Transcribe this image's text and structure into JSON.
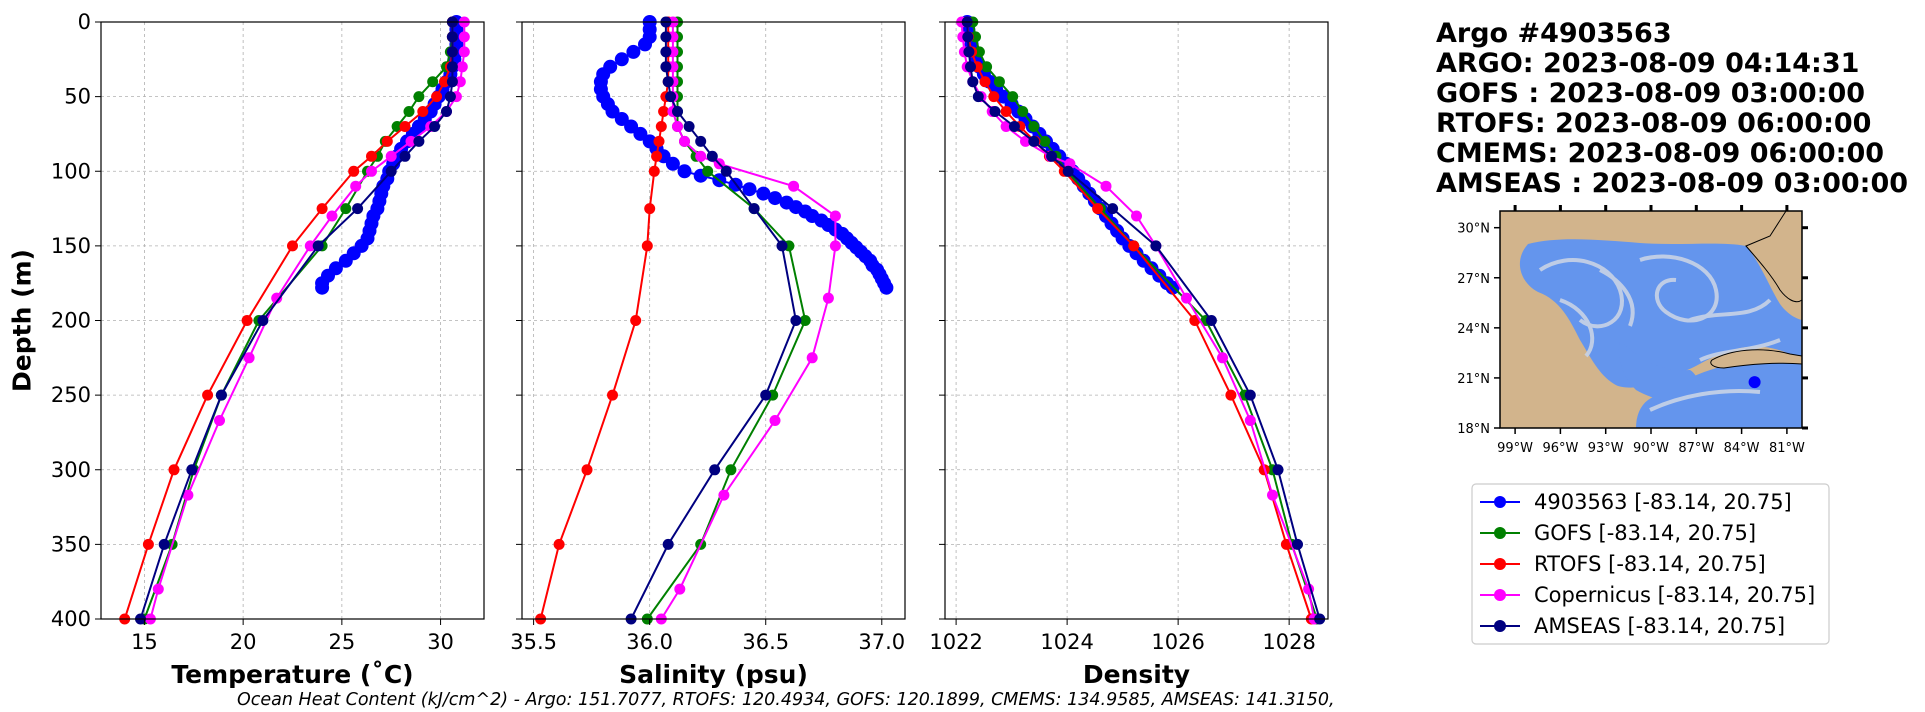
{
  "colors": {
    "argo": "#0000ff",
    "gofs": "#008000",
    "rtofs": "#ff0000",
    "copernicus": "#ff00ff",
    "amseas": "#000080",
    "land": "#d2b48c",
    "ocean": "#6495ed",
    "grid": "#b0b0b0"
  },
  "info": {
    "lines": [
      "Argo #4903563",
      "ARGO:  2023-08-09 04:14:31",
      "GOFS : 2023-08-09 03:00:00",
      "RTOFS: 2023-08-09 06:00:00",
      "CMEMS: 2023-08-09 06:00:00",
      "AMSEAS : 2023-08-09 03:00:00"
    ]
  },
  "footer": "Ocean Heat Content (kJ/cm^2) - Argo: 151.7077,  RTOFS: 120.4934,  GOFS: 120.1899,  CMEMS: 134.9585,  AMSEAS: 141.3150,",
  "legend": [
    {
      "label": "4903563 [-83.14, 20.75]",
      "color": "#0000ff"
    },
    {
      "label": "GOFS [-83.14, 20.75]",
      "color": "#008000"
    },
    {
      "label": "RTOFS [-83.14, 20.75]",
      "color": "#ff0000"
    },
    {
      "label": "Copernicus [-83.14, 20.75]",
      "color": "#ff00ff"
    },
    {
      "label": "AMSEAS [-83.14, 20.75]",
      "color": "#000080"
    }
  ],
  "map": {
    "lat_ticks": [
      "30°N",
      "27°N",
      "24°N",
      "21°N",
      "18°N"
    ],
    "lon_ticks": [
      "99°W",
      "96°W",
      "93°W",
      "90°W",
      "87°W",
      "84°W",
      "81°W"
    ],
    "lon_range": [
      -100,
      -80
    ],
    "lat_range": [
      18,
      31
    ],
    "argo_position": [
      -83.14,
      20.75
    ]
  },
  "chart_data": [
    {
      "type": "line",
      "xlabel": "Temperature (˚C)",
      "ylabel": "Depth (m)",
      "xlim": [
        12.8,
        32.2
      ],
      "ylim": [
        400,
        0
      ],
      "xticks": [
        15,
        20,
        25,
        30
      ],
      "yticks": [
        0,
        50,
        100,
        150,
        200,
        250,
        300,
        350,
        400
      ],
      "grid": true,
      "series": [
        {
          "key": "argo",
          "depth": [
            0,
            5,
            10,
            15,
            20,
            25,
            30,
            35,
            40,
            45,
            50,
            55,
            60,
            65,
            70,
            75,
            80,
            85,
            90,
            95,
            100,
            105,
            110,
            115,
            120,
            125,
            130,
            135,
            140,
            145,
            150,
            155,
            160,
            165,
            170,
            175,
            178
          ],
          "values": [
            30.8,
            30.8,
            30.8,
            30.8,
            30.8,
            30.7,
            30.6,
            30.5,
            30.3,
            30.1,
            29.9,
            29.7,
            29.5,
            29.2,
            28.9,
            28.6,
            28.3,
            28.0,
            27.8,
            27.6,
            27.4,
            27.3,
            27.1,
            27.0,
            26.9,
            26.8,
            26.6,
            26.5,
            26.4,
            26.3,
            26.0,
            25.6,
            25.2,
            24.7,
            24.3,
            24.0,
            24.0
          ]
        },
        {
          "key": "gofs",
          "depth": [
            0,
            10,
            20,
            30,
            40,
            50,
            60,
            70,
            80,
            90,
            100,
            125,
            150,
            200,
            250,
            300,
            350,
            400
          ],
          "values": [
            30.6,
            30.6,
            30.5,
            30.3,
            29.6,
            28.9,
            28.4,
            27.8,
            27.2,
            26.8,
            26.3,
            25.2,
            24.0,
            20.8,
            18.9,
            17.5,
            16.4,
            15.0
          ]
        },
        {
          "key": "rtofs",
          "depth": [
            0,
            10,
            20,
            30,
            40,
            50,
            60,
            70,
            80,
            90,
            100,
            125,
            150,
            200,
            250,
            300,
            350,
            400
          ],
          "values": [
            30.6,
            30.6,
            30.6,
            30.5,
            30.2,
            29.8,
            29.1,
            28.2,
            27.3,
            26.5,
            25.6,
            24.0,
            22.5,
            20.2,
            18.2,
            16.5,
            15.2,
            14.0
          ]
        },
        {
          "key": "copernicus",
          "depth": [
            0,
            10,
            20,
            30,
            40,
            50,
            60,
            70,
            80,
            90,
            100,
            110,
            130,
            150,
            185,
            225,
            267,
            317,
            380,
            400
          ],
          "values": [
            31.2,
            31.2,
            31.2,
            31.1,
            31.0,
            30.8,
            30.3,
            29.5,
            28.5,
            27.5,
            26.5,
            25.7,
            24.5,
            23.4,
            21.7,
            20.3,
            18.8,
            17.2,
            15.7,
            15.3
          ]
        },
        {
          "key": "amseas",
          "depth": [
            0,
            10,
            20,
            30,
            40,
            50,
            60,
            70,
            80,
            90,
            100,
            125,
            150,
            200,
            250,
            300,
            350,
            400
          ],
          "values": [
            30.6,
            30.6,
            30.6,
            30.6,
            30.6,
            30.5,
            30.3,
            29.7,
            28.9,
            28.2,
            27.5,
            25.8,
            23.8,
            21.0,
            18.9,
            17.4,
            16.0,
            14.8
          ]
        }
      ]
    },
    {
      "type": "line",
      "xlabel": "Salinity (psu)",
      "ylabel": "",
      "xlim": [
        35.45,
        37.1
      ],
      "ylim": [
        400,
        0
      ],
      "xticks": [
        35.5,
        36.0,
        36.5,
        37.0
      ],
      "yticks": [
        0,
        50,
        100,
        150,
        200,
        250,
        300,
        350,
        400
      ],
      "grid": true,
      "series": [
        {
          "key": "argo",
          "depth": [
            0,
            5,
            10,
            15,
            20,
            25,
            30,
            35,
            40,
            45,
            50,
            55,
            60,
            65,
            70,
            75,
            80,
            85,
            90,
            95,
            100,
            103,
            106,
            109,
            112,
            115,
            118,
            121,
            124,
            127,
            130,
            133,
            136,
            139,
            142,
            145,
            148,
            151,
            154,
            157,
            160,
            163,
            166,
            169,
            172,
            175,
            178
          ],
          "values": [
            36.0,
            36.0,
            36.0,
            35.98,
            35.93,
            35.88,
            35.83,
            35.8,
            35.79,
            35.79,
            35.8,
            35.82,
            35.84,
            35.88,
            35.92,
            35.96,
            36.0,
            36.03,
            36.06,
            36.1,
            36.15,
            36.22,
            36.3,
            36.37,
            36.43,
            36.49,
            36.54,
            36.59,
            36.63,
            36.67,
            36.7,
            36.74,
            36.77,
            36.8,
            36.83,
            36.85,
            36.87,
            36.89,
            36.91,
            36.93,
            36.95,
            36.96,
            36.98,
            36.99,
            37.0,
            37.01,
            37.02
          ]
        },
        {
          "key": "gofs",
          "depth": [
            0,
            10,
            20,
            30,
            40,
            50,
            60,
            70,
            80,
            90,
            100,
            125,
            150,
            200,
            250,
            300,
            350,
            400
          ],
          "values": [
            36.12,
            36.12,
            36.12,
            36.12,
            36.12,
            36.12,
            36.12,
            36.12,
            36.15,
            36.2,
            36.25,
            36.45,
            36.6,
            36.67,
            36.53,
            36.35,
            36.22,
            35.99
          ]
        },
        {
          "key": "rtofs",
          "depth": [
            0,
            10,
            20,
            30,
            40,
            50,
            60,
            70,
            80,
            90,
            100,
            125,
            150,
            200,
            250,
            300,
            350,
            400
          ],
          "values": [
            36.08,
            36.08,
            36.08,
            36.08,
            36.08,
            36.07,
            36.06,
            36.05,
            36.04,
            36.03,
            36.02,
            36.0,
            35.99,
            35.94,
            35.84,
            35.73,
            35.61,
            35.53
          ]
        },
        {
          "key": "copernicus",
          "depth": [
            0,
            10,
            20,
            30,
            40,
            50,
            60,
            70,
            80,
            90,
            95,
            110,
            130,
            150,
            185,
            225,
            267,
            317,
            380,
            400
          ],
          "values": [
            36.1,
            36.1,
            36.1,
            36.1,
            36.1,
            36.1,
            36.1,
            36.12,
            36.15,
            36.22,
            36.3,
            36.62,
            36.8,
            36.8,
            36.77,
            36.7,
            36.54,
            36.32,
            36.13,
            36.05
          ]
        },
        {
          "key": "amseas",
          "depth": [
            0,
            10,
            20,
            30,
            40,
            50,
            60,
            70,
            80,
            90,
            100,
            125,
            150,
            200,
            250,
            300,
            350,
            400
          ],
          "values": [
            36.07,
            36.07,
            36.07,
            36.07,
            36.08,
            36.09,
            36.12,
            36.17,
            36.22,
            36.27,
            36.33,
            36.45,
            36.57,
            36.63,
            36.5,
            36.28,
            36.08,
            35.92
          ]
        }
      ]
    },
    {
      "type": "line",
      "xlabel": "Density",
      "ylabel": "",
      "xlim": [
        1021.8,
        1028.7
      ],
      "ylim": [
        400,
        0
      ],
      "xticks": [
        1022,
        1024,
        1026,
        1028
      ],
      "yticks": [
        0,
        50,
        100,
        150,
        200,
        250,
        300,
        350,
        400
      ],
      "grid": true,
      "series": [
        {
          "key": "argo",
          "depth": [
            0,
            5,
            10,
            15,
            20,
            25,
            30,
            35,
            40,
            45,
            50,
            55,
            60,
            65,
            70,
            75,
            80,
            85,
            90,
            95,
            100,
            105,
            110,
            115,
            120,
            125,
            130,
            135,
            140,
            145,
            150,
            155,
            160,
            165,
            170,
            175,
            178
          ],
          "values": [
            1022.2,
            1022.22,
            1022.25,
            1022.28,
            1022.32,
            1022.36,
            1022.42,
            1022.5,
            1022.6,
            1022.72,
            1022.85,
            1023.0,
            1023.12,
            1023.25,
            1023.38,
            1023.5,
            1023.62,
            1023.74,
            1023.86,
            1023.98,
            1024.1,
            1024.2,
            1024.3,
            1024.4,
            1024.5,
            1024.6,
            1024.7,
            1024.8,
            1024.9,
            1025.0,
            1025.12,
            1025.25,
            1025.38,
            1025.52,
            1025.66,
            1025.8,
            1025.9
          ]
        },
        {
          "key": "gofs",
          "depth": [
            0,
            10,
            20,
            30,
            40,
            50,
            60,
            70,
            80,
            90,
            100,
            125,
            150,
            200,
            250,
            300,
            350,
            400
          ],
          "values": [
            1022.3,
            1022.35,
            1022.42,
            1022.55,
            1022.78,
            1023.02,
            1023.2,
            1023.4,
            1023.6,
            1023.8,
            1024.0,
            1024.6,
            1025.2,
            1026.5,
            1027.2,
            1027.7,
            1028.05,
            1028.5
          ]
        },
        {
          "key": "rtofs",
          "depth": [
            0,
            10,
            20,
            30,
            40,
            50,
            60,
            70,
            80,
            90,
            100,
            125,
            150,
            200,
            250,
            300,
            350,
            400
          ],
          "values": [
            1022.2,
            1022.22,
            1022.28,
            1022.38,
            1022.52,
            1022.68,
            1022.9,
            1023.15,
            1023.42,
            1023.68,
            1023.95,
            1024.55,
            1025.2,
            1026.3,
            1026.95,
            1027.55,
            1027.95,
            1028.4
          ]
        },
        {
          "key": "copernicus",
          "depth": [
            0,
            10,
            20,
            30,
            40,
            50,
            60,
            70,
            80,
            90,
            95,
            110,
            130,
            150,
            185,
            225,
            267,
            317,
            380,
            400
          ],
          "values": [
            1022.1,
            1022.12,
            1022.15,
            1022.2,
            1022.3,
            1022.45,
            1022.65,
            1022.9,
            1023.25,
            1023.7,
            1024.05,
            1024.7,
            1025.25,
            1025.6,
            1026.15,
            1026.8,
            1027.3,
            1027.7,
            1028.35,
            1028.45
          ]
        },
        {
          "key": "amseas",
          "depth": [
            0,
            10,
            20,
            30,
            40,
            50,
            60,
            70,
            80,
            90,
            100,
            125,
            150,
            200,
            250,
            300,
            350,
            400
          ],
          "values": [
            1022.2,
            1022.21,
            1022.23,
            1022.26,
            1022.3,
            1022.4,
            1022.7,
            1023.05,
            1023.4,
            1023.72,
            1024.02,
            1024.82,
            1025.6,
            1026.6,
            1027.3,
            1027.8,
            1028.15,
            1028.55
          ]
        }
      ]
    }
  ]
}
